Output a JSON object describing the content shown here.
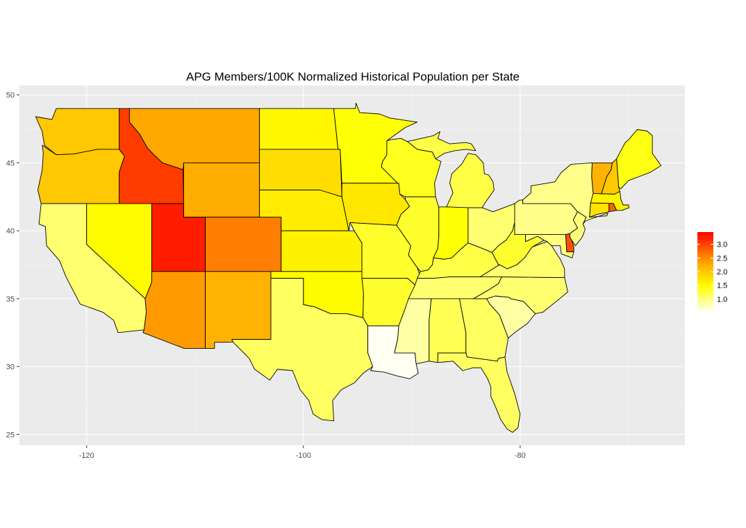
{
  "chart_data": {
    "type": "choropleth",
    "title": "APG Members/100K Normalized Historical Population per State",
    "xlabel": "",
    "ylabel": "",
    "xlim": [
      -126.2,
      -64.8
    ],
    "ylim": [
      24.2,
      50.7
    ],
    "x_ticks": [
      -120,
      -100,
      -80
    ],
    "x_tick_labels": [
      "-120",
      "-100",
      "-80"
    ],
    "y_ticks": [
      25,
      30,
      35,
      40,
      45,
      50
    ],
    "y_tick_labels": [
      "25",
      "30",
      "35",
      "40",
      "45",
      "50"
    ],
    "grid": true,
    "legend": {
      "position": "right",
      "min": 0.5,
      "max": 3.45,
      "breaks": [
        1.0,
        1.5,
        2.0,
        2.5,
        3.0
      ],
      "break_labels": [
        "1.0",
        "1.5",
        "2.0",
        "2.5",
        "3.0"
      ],
      "low_color": "#ffffff",
      "high_color": "#ff0000"
    },
    "states": [
      {
        "name": "Washington",
        "value": 2.0
      },
      {
        "name": "Oregon",
        "value": 2.0
      },
      {
        "name": "California",
        "value": 1.05
      },
      {
        "name": "Nevada",
        "value": 1.5
      },
      {
        "name": "Idaho",
        "value": 3.05
      },
      {
        "name": "Montana",
        "value": 2.3
      },
      {
        "name": "Wyoming",
        "value": 2.25
      },
      {
        "name": "Utah",
        "value": 3.25
      },
      {
        "name": "Arizona",
        "value": 2.4
      },
      {
        "name": "Colorado",
        "value": 2.6
      },
      {
        "name": "New Mexico",
        "value": 2.2
      },
      {
        "name": "North Dakota",
        "value": 1.55
      },
      {
        "name": "South Dakota",
        "value": 1.8
      },
      {
        "name": "Nebraska",
        "value": 1.65
      },
      {
        "name": "Kansas",
        "value": 1.6
      },
      {
        "name": "Oklahoma",
        "value": 1.5
      },
      {
        "name": "Texas",
        "value": 1.1
      },
      {
        "name": "Minnesota",
        "value": 1.45
      },
      {
        "name": "Iowa",
        "value": 1.7
      },
      {
        "name": "Missouri",
        "value": 1.3
      },
      {
        "name": "Arkansas",
        "value": 1.3
      },
      {
        "name": "Louisiana",
        "value": 0.55
      },
      {
        "name": "Wisconsin",
        "value": 1.35
      },
      {
        "name": "Illinois",
        "value": 1.3
      },
      {
        "name": "Michigan",
        "value": 1.2
      },
      {
        "name": "Indiana",
        "value": 1.45
      },
      {
        "name": "Ohio",
        "value": 1.05
      },
      {
        "name": "Kentucky",
        "value": 1.2
      },
      {
        "name": "Tennessee",
        "value": 1.05
      },
      {
        "name": "Mississippi",
        "value": 0.85
      },
      {
        "name": "Alabama",
        "value": 1.15
      },
      {
        "name": "Georgia",
        "value": 1.1
      },
      {
        "name": "Florida",
        "value": 1.1
      },
      {
        "name": "South Carolina",
        "value": 0.85
      },
      {
        "name": "North Carolina",
        "value": 1.05
      },
      {
        "name": "Virginia",
        "value": 1.05
      },
      {
        "name": "West Virginia",
        "value": 1.3
      },
      {
        "name": "Maryland",
        "value": 1.0
      },
      {
        "name": "Delaware",
        "value": 2.9
      },
      {
        "name": "Pennsylvania",
        "value": 0.95
      },
      {
        "name": "New Jersey",
        "value": 1.0
      },
      {
        "name": "New York",
        "value": 0.95
      },
      {
        "name": "Connecticut",
        "value": 1.75
      },
      {
        "name": "Rhode Island",
        "value": 2.8
      },
      {
        "name": "Massachusetts",
        "value": 1.6
      },
      {
        "name": "Vermont",
        "value": 2.2
      },
      {
        "name": "New Hampshire",
        "value": 2.0
      },
      {
        "name": "Maine",
        "value": 1.4
      }
    ]
  }
}
